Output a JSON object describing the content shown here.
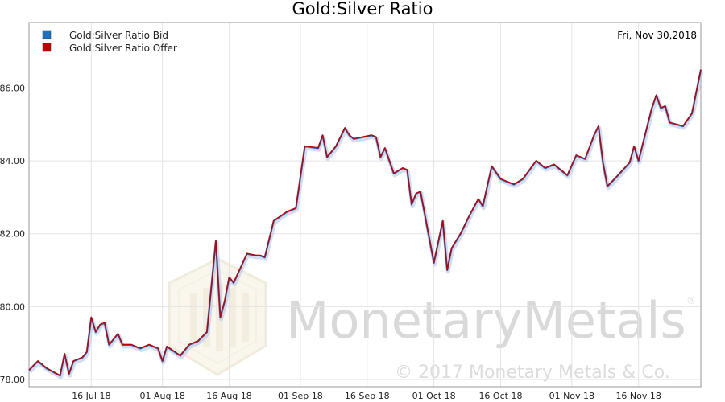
{
  "watermark": {
    "name": "MonetaryMetals",
    "copyright": "© 2017 Monetary Metals & Co.",
    "registered": "®"
  },
  "chart_data": {
    "type": "line",
    "title": "Gold:Silver Ratio",
    "date_label": "Fri, Nov 30,2018",
    "xlabel": "",
    "ylabel": "",
    "ylim": [
      77.8,
      87.8
    ],
    "y_ticks": [
      "78.00",
      "80.00",
      "82.00",
      "84.00",
      "86.00"
    ],
    "x_range": [
      "2018-07-02",
      "2018-11-30"
    ],
    "x_ticks": [
      {
        "date": "2018-07-16",
        "label": "16 Jul 18"
      },
      {
        "date": "2018-08-01",
        "label": "01 Aug 18"
      },
      {
        "date": "2018-08-16",
        "label": "16 Aug 18"
      },
      {
        "date": "2018-09-01",
        "label": "01 Sep 18"
      },
      {
        "date": "2018-09-16",
        "label": "16 Sep 18"
      },
      {
        "date": "2018-10-01",
        "label": "01 Oct 18"
      },
      {
        "date": "2018-10-16",
        "label": "16 Oct 18"
      },
      {
        "date": "2018-11-01",
        "label": "01 Nov 18"
      },
      {
        "date": "2018-11-16",
        "label": "16 Nov 18"
      }
    ],
    "grid": true,
    "legend_position": "top-left",
    "series": [
      {
        "name": "Gold:Silver Ratio Bid",
        "color": "#1f6fbf",
        "x": [
          "2018-07-02",
          "2018-07-04",
          "2018-07-06",
          "2018-07-09",
          "2018-07-10",
          "2018-07-11",
          "2018-07-12",
          "2018-07-14",
          "2018-07-15",
          "2018-07-16",
          "2018-07-17",
          "2018-07-18",
          "2018-07-19",
          "2018-07-20",
          "2018-07-22",
          "2018-07-23",
          "2018-07-25",
          "2018-07-27",
          "2018-07-29",
          "2018-07-31",
          "2018-08-01",
          "2018-08-02",
          "2018-08-05",
          "2018-08-07",
          "2018-08-09",
          "2018-08-11",
          "2018-08-13",
          "2018-08-14",
          "2018-08-15",
          "2018-08-16",
          "2018-08-17",
          "2018-08-20",
          "2018-08-22",
          "2018-08-23",
          "2018-08-24",
          "2018-08-26",
          "2018-08-29",
          "2018-08-31",
          "2018-09-02",
          "2018-09-05",
          "2018-09-06",
          "2018-09-07",
          "2018-09-08",
          "2018-09-09",
          "2018-09-11",
          "2018-09-12",
          "2018-09-13",
          "2018-09-15",
          "2018-09-17",
          "2018-09-18",
          "2018-09-19",
          "2018-09-20",
          "2018-09-22",
          "2018-09-24",
          "2018-09-25",
          "2018-09-26",
          "2018-09-27",
          "2018-09-28",
          "2018-10-01",
          "2018-10-03",
          "2018-10-04",
          "2018-10-05",
          "2018-10-07",
          "2018-10-09",
          "2018-10-11",
          "2018-10-12",
          "2018-10-14",
          "2018-10-16",
          "2018-10-19",
          "2018-10-21",
          "2018-10-24",
          "2018-10-26",
          "2018-10-27",
          "2018-10-28",
          "2018-10-31",
          "2018-11-02",
          "2018-11-03",
          "2018-11-04",
          "2018-11-06",
          "2018-11-07",
          "2018-11-08",
          "2018-11-09",
          "2018-11-11",
          "2018-11-14",
          "2018-11-15",
          "2018-11-16",
          "2018-11-19",
          "2018-11-20",
          "2018-11-21",
          "2018-11-22",
          "2018-11-23",
          "2018-11-26",
          "2018-11-28",
          "2018-11-30"
        ],
        "values": [
          78.25,
          78.5,
          78.3,
          78.1,
          78.7,
          78.15,
          78.5,
          78.6,
          78.75,
          79.7,
          79.3,
          79.5,
          79.55,
          78.95,
          79.25,
          78.95,
          78.95,
          78.85,
          78.95,
          78.85,
          78.5,
          78.9,
          78.65,
          78.95,
          79.05,
          79.3,
          81.8,
          79.7,
          80.15,
          80.8,
          80.65,
          81.45,
          81.4,
          81.4,
          81.35,
          82.35,
          82.6,
          82.7,
          84.4,
          84.35,
          84.7,
          84.1,
          84.25,
          84.4,
          84.9,
          84.7,
          84.6,
          84.65,
          84.7,
          84.65,
          84.1,
          84.35,
          83.65,
          83.8,
          83.75,
          82.8,
          83.1,
          83.15,
          81.2,
          82.35,
          81.0,
          81.6,
          82.0,
          82.5,
          82.95,
          82.75,
          83.85,
          83.5,
          83.35,
          83.5,
          84.0,
          83.8,
          83.85,
          83.9,
          83.6,
          84.15,
          84.1,
          84.05,
          84.7,
          84.95,
          83.95,
          83.3,
          83.55,
          83.95,
          84.4,
          84.0,
          85.45,
          85.8,
          85.45,
          85.5,
          85.05,
          84.95,
          85.3,
          86.5
        ]
      },
      {
        "name": "Gold:Silver Ratio Offer",
        "color": "#c00000",
        "x": [
          "2018-07-02",
          "2018-07-04",
          "2018-07-06",
          "2018-07-09",
          "2018-07-10",
          "2018-07-11",
          "2018-07-12",
          "2018-07-14",
          "2018-07-15",
          "2018-07-16",
          "2018-07-17",
          "2018-07-18",
          "2018-07-19",
          "2018-07-20",
          "2018-07-22",
          "2018-07-23",
          "2018-07-25",
          "2018-07-27",
          "2018-07-29",
          "2018-07-31",
          "2018-08-01",
          "2018-08-02",
          "2018-08-05",
          "2018-08-07",
          "2018-08-09",
          "2018-08-11",
          "2018-08-13",
          "2018-08-14",
          "2018-08-15",
          "2018-08-16",
          "2018-08-17",
          "2018-08-20",
          "2018-08-22",
          "2018-08-23",
          "2018-08-24",
          "2018-08-26",
          "2018-08-29",
          "2018-08-31",
          "2018-09-02",
          "2018-09-05",
          "2018-09-06",
          "2018-09-07",
          "2018-09-08",
          "2018-09-09",
          "2018-09-11",
          "2018-09-12",
          "2018-09-13",
          "2018-09-15",
          "2018-09-17",
          "2018-09-18",
          "2018-09-19",
          "2018-09-20",
          "2018-09-22",
          "2018-09-24",
          "2018-09-25",
          "2018-09-26",
          "2018-09-27",
          "2018-09-28",
          "2018-10-01",
          "2018-10-03",
          "2018-10-04",
          "2018-10-05",
          "2018-10-07",
          "2018-10-09",
          "2018-10-11",
          "2018-10-12",
          "2018-10-14",
          "2018-10-16",
          "2018-10-19",
          "2018-10-21",
          "2018-10-24",
          "2018-10-26",
          "2018-10-27",
          "2018-10-28",
          "2018-10-31",
          "2018-11-02",
          "2018-11-03",
          "2018-11-04",
          "2018-11-06",
          "2018-11-07",
          "2018-11-08",
          "2018-11-09",
          "2018-11-11",
          "2018-11-14",
          "2018-11-15",
          "2018-11-16",
          "2018-11-19",
          "2018-11-20",
          "2018-11-21",
          "2018-11-22",
          "2018-11-23",
          "2018-11-26",
          "2018-11-28",
          "2018-11-30"
        ],
        "values": [
          78.26,
          78.51,
          78.31,
          78.11,
          78.71,
          78.16,
          78.51,
          78.61,
          78.76,
          79.71,
          79.31,
          79.51,
          79.56,
          78.96,
          79.26,
          78.96,
          78.96,
          78.86,
          78.96,
          78.86,
          78.51,
          78.91,
          78.66,
          78.96,
          79.06,
          79.31,
          81.81,
          79.71,
          80.16,
          80.81,
          80.66,
          81.46,
          81.41,
          81.41,
          81.36,
          82.36,
          82.61,
          82.71,
          84.41,
          84.36,
          84.71,
          84.11,
          84.26,
          84.41,
          84.91,
          84.71,
          84.61,
          84.66,
          84.71,
          84.66,
          84.11,
          84.36,
          83.66,
          83.81,
          83.76,
          82.81,
          83.11,
          83.16,
          81.21,
          82.36,
          81.01,
          81.61,
          82.01,
          82.51,
          82.96,
          82.76,
          83.86,
          83.51,
          83.36,
          83.51,
          84.01,
          83.81,
          83.86,
          83.91,
          83.61,
          84.16,
          84.11,
          84.06,
          84.71,
          84.96,
          83.96,
          83.31,
          83.56,
          83.96,
          84.41,
          84.01,
          85.46,
          85.81,
          85.46,
          85.51,
          85.06,
          84.96,
          85.31,
          86.51
        ]
      }
    ]
  }
}
